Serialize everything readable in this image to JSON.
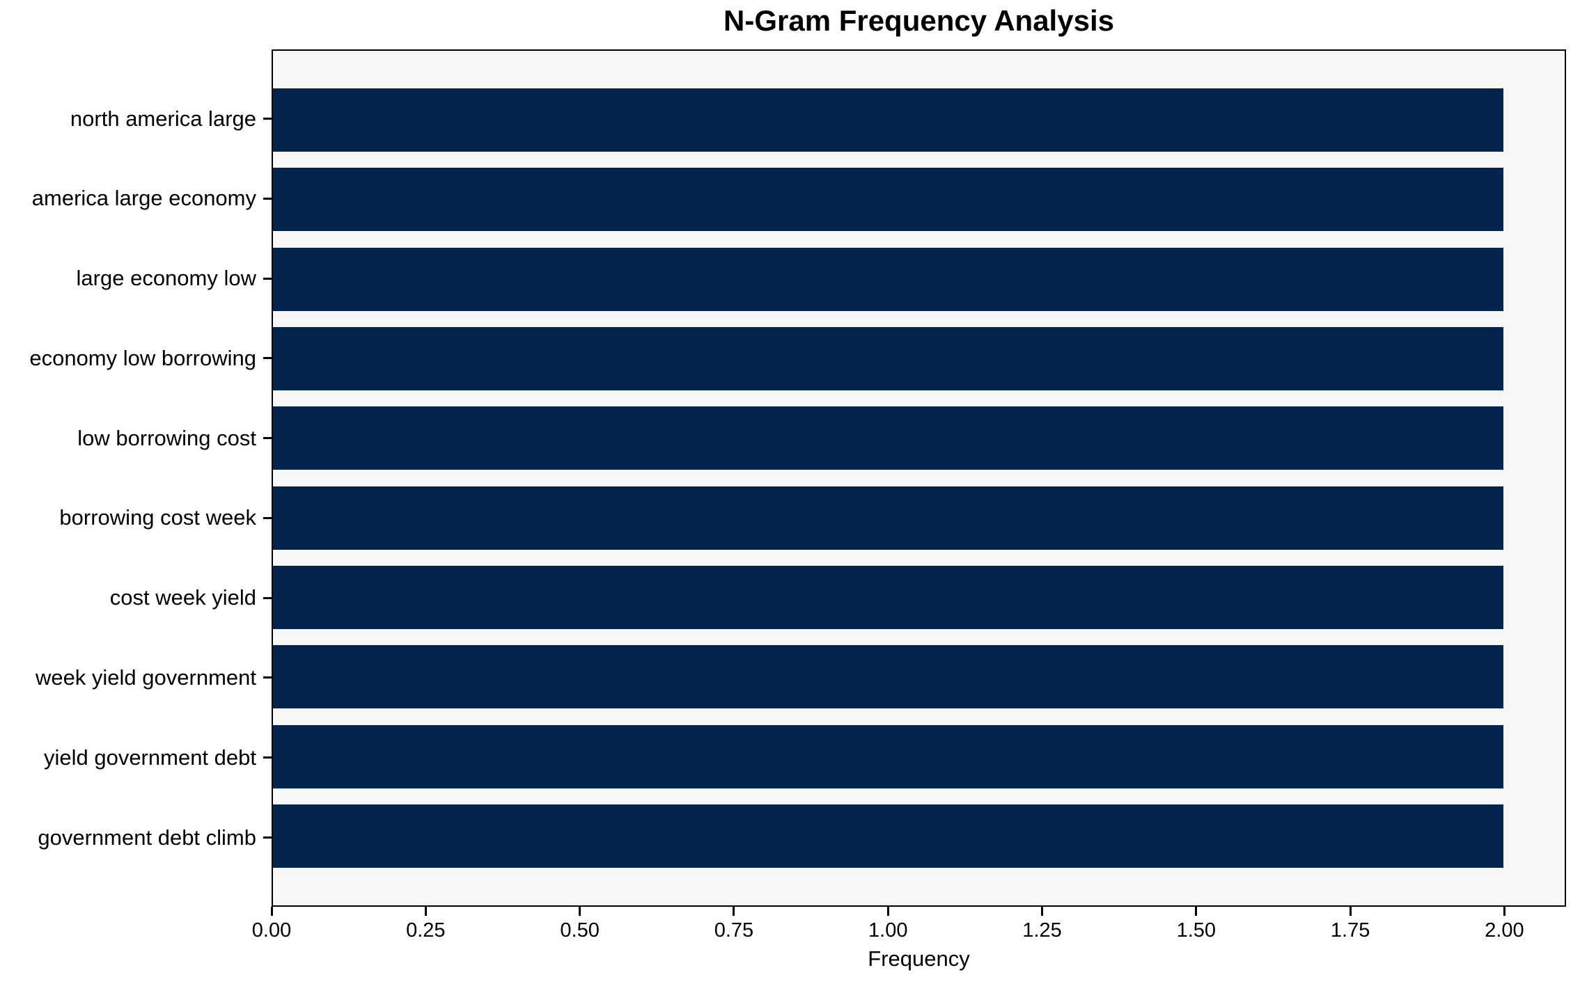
{
  "chart_data": {
    "type": "bar",
    "orientation": "horizontal",
    "title": "N-Gram Frequency Analysis",
    "xlabel": "Frequency",
    "ylabel": "",
    "categories": [
      "north america large",
      "america large economy",
      "large economy low",
      "economy low borrowing",
      "low borrowing cost",
      "borrowing cost week",
      "cost week yield",
      "week yield government",
      "yield government debt",
      "government debt climb"
    ],
    "values": [
      2,
      2,
      2,
      2,
      2,
      2,
      2,
      2,
      2,
      2
    ],
    "xlim": [
      0,
      2.1
    ],
    "xtick_labels": [
      "0.00",
      "0.25",
      "0.50",
      "0.75",
      "1.00",
      "1.25",
      "1.50",
      "1.75",
      "2.00"
    ],
    "xtick_values": [
      0.0,
      0.25,
      0.5,
      0.75,
      1.0,
      1.25,
      1.5,
      1.75,
      2.0
    ],
    "bar_color": "#03244d",
    "plot_background": "#f7f7f7",
    "figure_background": "#ffffff",
    "text_color": "#000000",
    "grid": false,
    "legend": null
  }
}
